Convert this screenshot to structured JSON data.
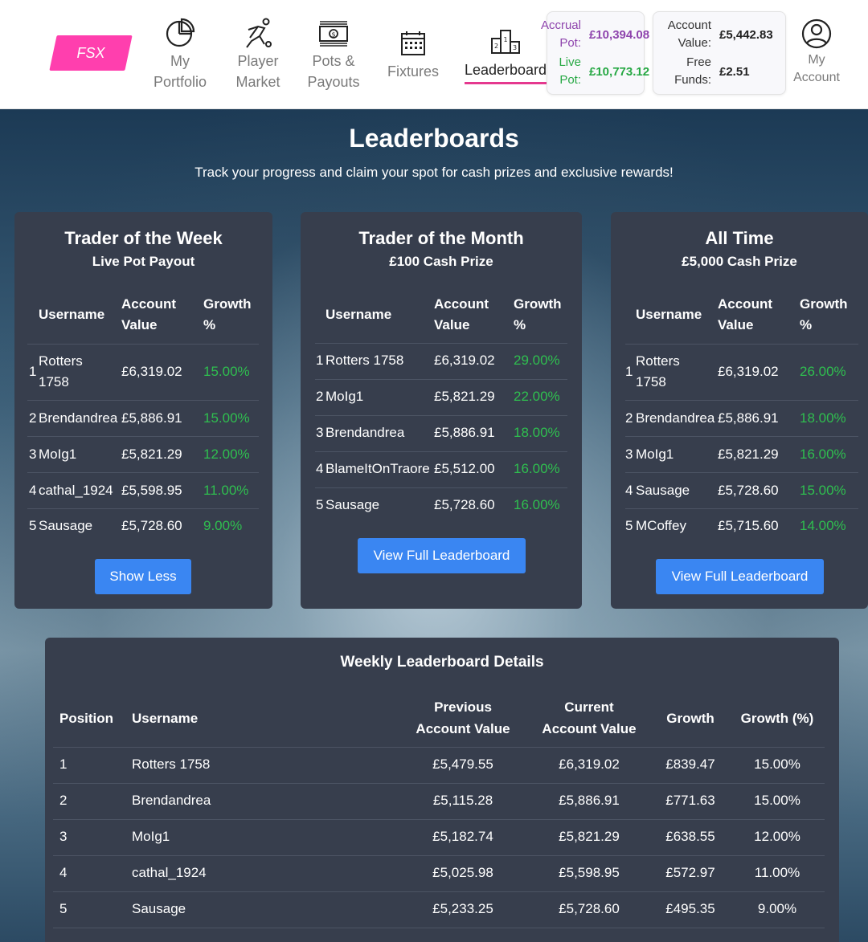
{
  "header": {
    "logo_text": "FSX",
    "nav": [
      {
        "label": "My\nPortfolio"
      },
      {
        "label": "Player\nMarket"
      },
      {
        "label": "Pots &\nPayouts"
      },
      {
        "label": "Fixtures"
      },
      {
        "label": "Leaderboard"
      },
      {
        "label": "My\nAccount"
      }
    ],
    "accrual_label": "Accrual\nPot:",
    "accrual_value": "£10,394.08",
    "live_label": "Live\nPot:",
    "live_value": "£10,773.12",
    "account_value_label": "Account\nValue:",
    "account_value": "£5,442.83",
    "free_funds_label": "Free\nFunds:",
    "free_funds": "£2.51",
    "colors": {
      "accent": "#e5398f",
      "accrual": "#8e44ad",
      "live": "#27a844"
    }
  },
  "page": {
    "title": "Leaderboards",
    "subtitle": "Track your progress and claim your spot for cash prizes and exclusive rewards!"
  },
  "cards": [
    {
      "title": "Trader of the Week",
      "subtitle": "Live Pot Payout",
      "headers": [
        "Username",
        "Account\nValue",
        "Growth\n%"
      ],
      "rows": [
        {
          "rank": "1",
          "user": "Rotters\n1758",
          "value": "£6,319.02",
          "growth": "15.00%"
        },
        {
          "rank": "2",
          "user": "Brendandrea",
          "value": "£5,886.91",
          "growth": "15.00%"
        },
        {
          "rank": "3",
          "user": "MoIg1",
          "value": "£5,821.29",
          "growth": "12.00%"
        },
        {
          "rank": "4",
          "user": "cathal_1924",
          "value": "£5,598.95",
          "growth": "11.00%"
        },
        {
          "rank": "5",
          "user": "Sausage",
          "value": "£5,728.60",
          "growth": "9.00%"
        }
      ],
      "button": "Show Less"
    },
    {
      "title": "Trader of the Month",
      "subtitle": "£100 Cash Prize",
      "headers": [
        "Username",
        "Account\nValue",
        "Growth\n%"
      ],
      "rows": [
        {
          "rank": "1",
          "user": "Rotters 1758",
          "value": "£6,319.02",
          "growth": "29.00%"
        },
        {
          "rank": "2",
          "user": "MoIg1",
          "value": "£5,821.29",
          "growth": "22.00%"
        },
        {
          "rank": "3",
          "user": "Brendandrea",
          "value": "£5,886.91",
          "growth": "18.00%"
        },
        {
          "rank": "4",
          "user": "BlameItOnTraore",
          "value": "£5,512.00",
          "growth": "16.00%"
        },
        {
          "rank": "5",
          "user": "Sausage",
          "value": "£5,728.60",
          "growth": "16.00%"
        }
      ],
      "button": "View Full Leaderboard"
    },
    {
      "title": "All Time",
      "subtitle": "£5,000 Cash Prize",
      "headers": [
        "Username",
        "Account\nValue",
        "Growth\n%"
      ],
      "rows": [
        {
          "rank": "1",
          "user": "Rotters\n1758",
          "value": "£6,319.02",
          "growth": "26.00%"
        },
        {
          "rank": "2",
          "user": "Brendandrea",
          "value": "£5,886.91",
          "growth": "18.00%"
        },
        {
          "rank": "3",
          "user": "MoIg1",
          "value": "£5,821.29",
          "growth": "16.00%"
        },
        {
          "rank": "4",
          "user": "Sausage",
          "value": "£5,728.60",
          "growth": "15.00%"
        },
        {
          "rank": "5",
          "user": "MCoffey",
          "value": "£5,715.60",
          "growth": "14.00%"
        }
      ],
      "button": "View Full Leaderboard"
    }
  ],
  "details": {
    "title": "Weekly Leaderboard Details",
    "headers": [
      "Position",
      "Username",
      "Previous\nAccount Value",
      "Current\nAccount Value",
      "Growth",
      "Growth (%)"
    ],
    "rows": [
      [
        "1",
        "Rotters 1758",
        "£5,479.55",
        "£6,319.02",
        "£839.47",
        "15.00%"
      ],
      [
        "2",
        "Brendandrea",
        "£5,115.28",
        "£5,886.91",
        "£771.63",
        "15.00%"
      ],
      [
        "3",
        "MoIg1",
        "£5,182.74",
        "£5,821.29",
        "£638.55",
        "12.00%"
      ],
      [
        "4",
        "cathal_1924",
        "£5,025.98",
        "£5,598.95",
        "£572.97",
        "11.00%"
      ],
      [
        "5",
        "Sausage",
        "£5,233.25",
        "£5,728.60",
        "£495.35",
        "9.00%"
      ]
    ]
  }
}
